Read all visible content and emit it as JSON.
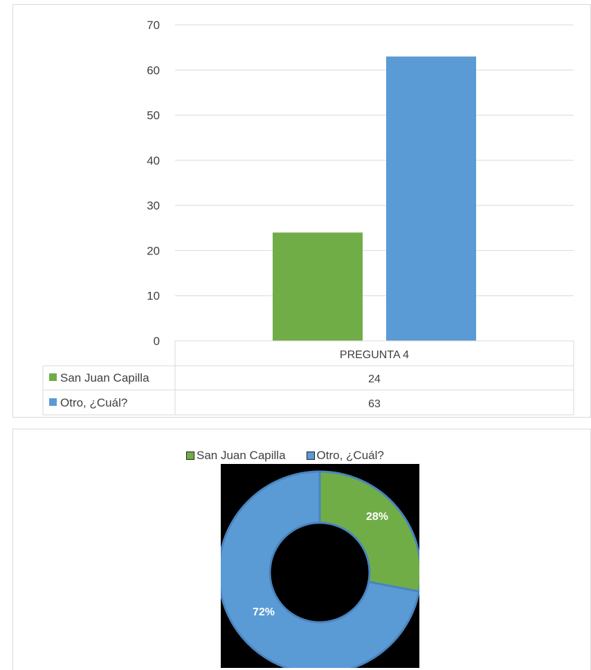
{
  "chart_data": [
    {
      "type": "bar",
      "categories": [
        "PREGUNTA 4"
      ],
      "series": [
        {
          "name": "San Juan Capilla",
          "values": [
            24
          ],
          "color": "#70ad47"
        },
        {
          "name": "Otro, ¿Cuál?",
          "values": [
            63
          ],
          "color": "#5b9bd5"
        }
      ],
      "yticks": [
        "0",
        "10",
        "20",
        "30",
        "40",
        "50",
        "60",
        "70"
      ],
      "ylim": [
        0,
        70
      ],
      "grid": true,
      "data_table": true,
      "table_rows": [
        {
          "label": "San Juan Capilla",
          "value": "24"
        },
        {
          "label": "Otro, ¿Cuál?",
          "value": "63"
        }
      ]
    },
    {
      "type": "pie",
      "variant": "doughnut",
      "legend": [
        "San Juan Capilla",
        "Otro, ¿Cuál?"
      ],
      "legend_position": "top",
      "slices": [
        {
          "name": "San Juan Capilla",
          "value": 28,
          "label": "28%",
          "color": "#70ad47"
        },
        {
          "name": "Otro, ¿Cuál?",
          "value": 72,
          "label": "72%",
          "color": "#5b9bd5"
        }
      ],
      "background": "#000000"
    }
  ]
}
